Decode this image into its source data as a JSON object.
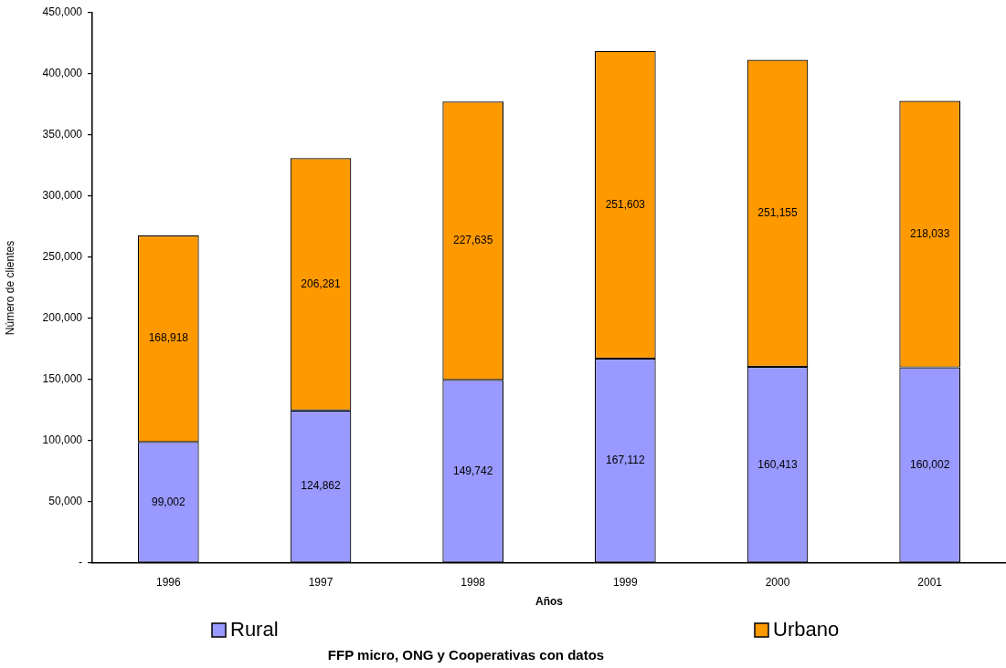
{
  "chart_data": {
    "type": "bar",
    "stacked": true,
    "categories": [
      "1996",
      "1997",
      "1998",
      "1999",
      "2000",
      "2001"
    ],
    "series": [
      {
        "name": "Rural",
        "color": "#9999ff",
        "values": [
          99002,
          124862,
          149742,
          167112,
          160413,
          160002
        ],
        "value_labels": [
          "99,002",
          "124,862",
          "149,742",
          "167,112",
          "160,413",
          "160,002"
        ]
      },
      {
        "name": "Urbano",
        "color": "#ff9900",
        "values": [
          168918,
          206281,
          227635,
          251603,
          251155,
          218033
        ],
        "value_labels": [
          "168,918",
          "206,281",
          "227,635",
          "251,603",
          "251,155",
          "218,033"
        ]
      }
    ],
    "xlabel": "Años",
    "ylabel": "Número de clientes",
    "ylim": [
      0,
      450000
    ],
    "yticks": [
      {
        "value": 0,
        "label": "-"
      },
      {
        "value": 50000,
        "label": "50,000"
      },
      {
        "value": 100000,
        "label": "100,000"
      },
      {
        "value": 150000,
        "label": "150,000"
      },
      {
        "value": 200000,
        "label": "200,000"
      },
      {
        "value": 250000,
        "label": "250,000"
      },
      {
        "value": 300000,
        "label": "300,000"
      },
      {
        "value": 350000,
        "label": "350,000"
      },
      {
        "value": 400000,
        "label": "400,000"
      },
      {
        "value": 450000,
        "label": "450,000"
      }
    ],
    "legend": "bottom",
    "annotations": [
      "FFP micro, ONG y Cooperativas con datos"
    ]
  }
}
